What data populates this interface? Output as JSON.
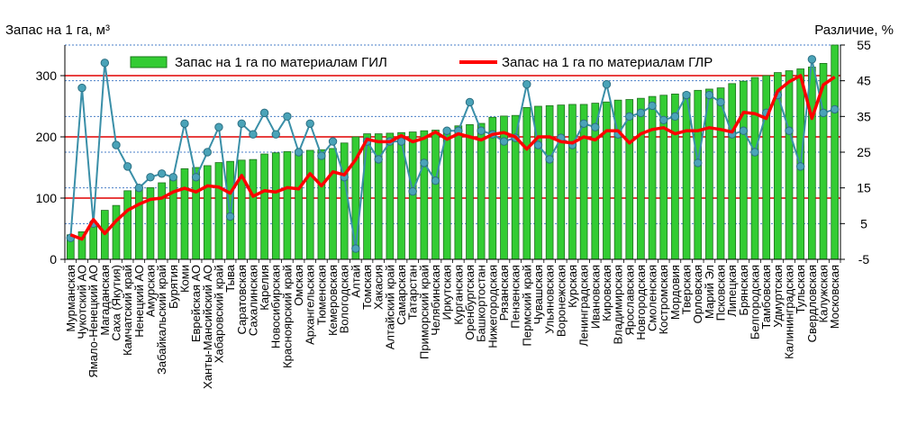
{
  "chart_data": {
    "type": "bar",
    "left_axis_title": "Запас на 1 га, м³",
    "right_axis_title": "Различие, %",
    "ylim": [
      0,
      350
    ],
    "yticks": [
      0,
      100,
      200,
      300
    ],
    "y2lim": [
      -5,
      55
    ],
    "y2ticks": [
      -5,
      5,
      15,
      25,
      35,
      45,
      55
    ],
    "red_gridlines_at": [
      100,
      200,
      300
    ],
    "categories": [
      "Мурманская",
      "Чукотский АО",
      "Ямало-Ненецкий АО",
      "Магаданская",
      "Саха (Якутия)",
      "Камчатский край",
      "Ненецкий АО",
      "Амурская",
      "Забайкальский край",
      "Бурятия",
      "Коми",
      "Еврейская АО",
      "Ханты-Мансийский АО",
      "Хабаровский край",
      "Тыва",
      "Саратовская",
      "Сахалинская",
      "Карелия",
      "Новосибирская",
      "Красноярский край",
      "Омская",
      "Архангельская",
      "Тюменская",
      "Кемеровская",
      "Вологодская",
      "Алтай",
      "Томская",
      "Хакасия",
      "Алтайский край",
      "Самарская",
      "Татарстан",
      "Приморский край",
      "Челябинская",
      "Иркутская",
      "Курганская",
      "Оренбургская",
      "Башкортостан",
      "Нижегородская",
      "Рязанская",
      "Пензенская",
      "Пермский край",
      "Чувашская",
      "Ульяновская",
      "Воронежская",
      "Курская",
      "Ленинградская",
      "Ивановская",
      "Кировская",
      "Владимирская",
      "Ярославская",
      "Новгородская",
      "Смоленская",
      "Костромская",
      "Мордовия",
      "Тверская",
      "Орловская",
      "Марий Эл",
      "Псковская",
      "Липецкая",
      "Брянская",
      "Белгородская",
      "Тамбовская",
      "Удмуртская",
      "Калининградская",
      "Тульская",
      "Свердловская",
      "Калужская",
      "Московская"
    ],
    "series": [
      {
        "name": "Запас на 1 га по материалам ГИЛ",
        "kind": "bar",
        "axis": "left",
        "color": "#33cc33",
        "values": [
          40,
          45,
          60,
          80,
          88,
          112,
          115,
          117,
          125,
          135,
          148,
          150,
          153,
          158,
          160,
          162,
          163,
          172,
          174,
          176,
          178,
          178,
          179,
          181,
          190,
          200,
          205,
          205,
          206,
          207,
          208,
          210,
          211,
          212,
          218,
          220,
          222,
          232,
          234,
          235,
          248,
          250,
          251,
          252,
          253,
          253,
          255,
          257,
          260,
          261,
          263,
          266,
          268,
          270,
          272,
          276,
          278,
          280,
          287,
          291,
          297,
          300,
          305,
          308,
          311,
          314,
          320,
          350
        ]
      },
      {
        "name": "Запас на 1 га по материалам ГЛР",
        "kind": "line",
        "axis": "left",
        "color": "#ff0000",
        "values": [
          40,
          33,
          65,
          42,
          63,
          80,
          90,
          98,
          100,
          110,
          116,
          110,
          120,
          118,
          108,
          137,
          103,
          112,
          110,
          117,
          115,
          140,
          120,
          143,
          138,
          163,
          196,
          192,
          192,
          202,
          192,
          198,
          208,
          196,
          205,
          200,
          195,
          204,
          207,
          200,
          180,
          200,
          200,
          192,
          190,
          200,
          195,
          210,
          210,
          190,
          205,
          212,
          215,
          205,
          210,
          210,
          215,
          212,
          208,
          240,
          238,
          230,
          275,
          290,
          300,
          230,
          285,
          298
        ]
      },
      {
        "name": "Различие, %",
        "kind": "line-markers",
        "axis": "right",
        "color": "#3a8fa8",
        "values": [
          1,
          43,
          5,
          50,
          27,
          21,
          15,
          18,
          19,
          18,
          33,
          18,
          25,
          32,
          7,
          33,
          30,
          36,
          30,
          35,
          25,
          33,
          24,
          28,
          18,
          -2,
          28,
          23,
          28,
          28,
          14,
          22,
          17,
          31,
          31,
          39,
          31,
          30,
          28,
          29,
          44,
          27,
          23,
          29,
          27,
          33,
          32,
          44,
          30,
          35,
          36,
          38,
          34,
          35,
          41,
          22,
          41,
          39,
          30,
          31,
          25,
          36,
          41,
          31,
          21,
          51,
          36,
          37
        ]
      }
    ]
  }
}
